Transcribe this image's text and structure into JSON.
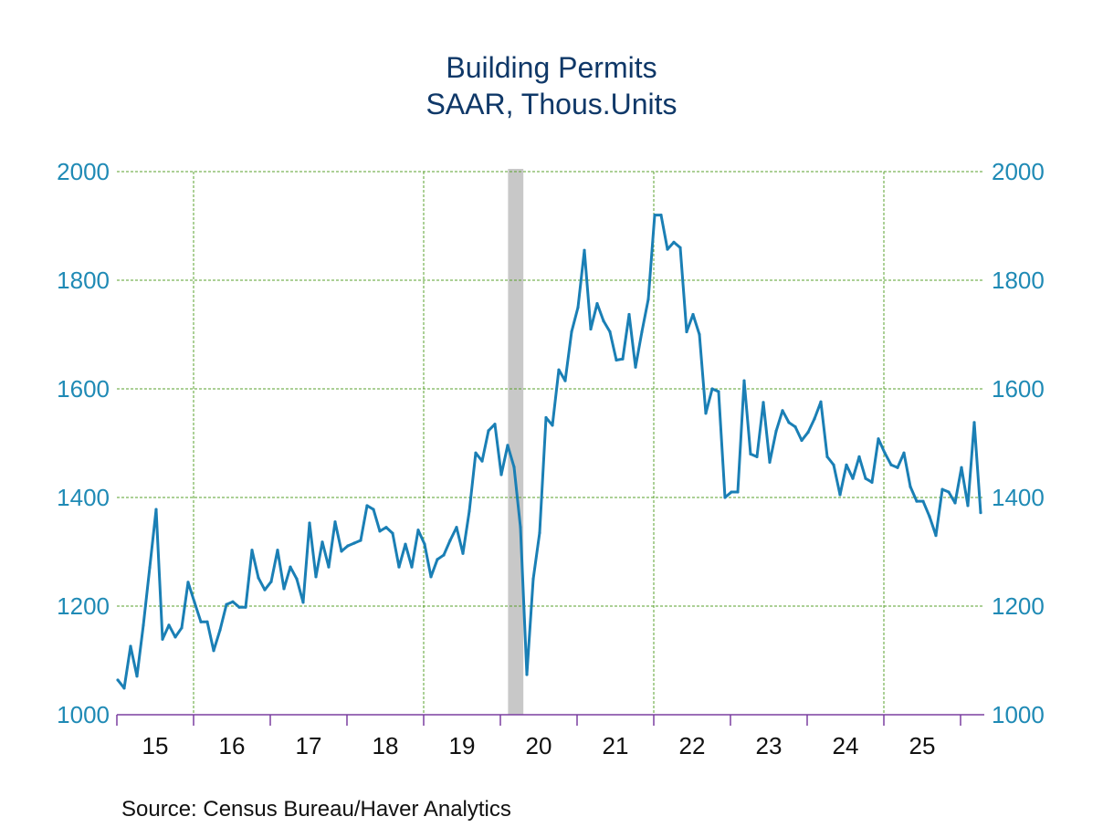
{
  "chart_data": {
    "type": "line",
    "title": "Building Permits",
    "subtitle": "SAAR, Thous.Units",
    "source": "Source:  Census Bureau/Haver Analytics",
    "xlabel": "",
    "ylabel": "",
    "ylim": [
      1000,
      2000
    ],
    "yticks": [
      1000,
      1200,
      1400,
      1600,
      1800,
      2000
    ],
    "ytick_labels": [
      "1000",
      "1200",
      "1400",
      "1600",
      "1800",
      "2000"
    ],
    "y_axis_sides": [
      "left",
      "right"
    ],
    "xlim_years": [
      2015,
      2026.25
    ],
    "xtick_labels": [
      "15",
      "16",
      "17",
      "18",
      "19",
      "20",
      "21",
      "22",
      "23",
      "24",
      "25"
    ],
    "grid": true,
    "vertical_grid_years": [
      2016,
      2019,
      2022,
      2025
    ],
    "recession_shading": [
      {
        "start": 2020.1,
        "end": 2020.3
      }
    ],
    "colors": {
      "line": "#1a7fb5",
      "grid": "#5aa02c",
      "axis": "#7b3fa0",
      "recession": "#c8c8c8",
      "title": "#0f3868",
      "ytick": "#1f8ab5"
    },
    "series": [
      {
        "name": "Building Permits",
        "start": "2015-01",
        "frequency": "monthly",
        "values": [
          1064,
          1049,
          1126,
          1071,
          1165,
          1271,
          1378,
          1139,
          1165,
          1143,
          1160,
          1244,
          1207,
          1171,
          1171,
          1118,
          1156,
          1203,
          1208,
          1198,
          1198,
          1303,
          1252,
          1230,
          1245,
          1303,
          1232,
          1272,
          1250,
          1207,
          1353,
          1254,
          1318,
          1272,
          1355,
          1301,
          1311,
          1316,
          1321,
          1385,
          1378,
          1338,
          1345,
          1334,
          1272,
          1314,
          1272,
          1340,
          1314,
          1254,
          1286,
          1294,
          1321,
          1345,
          1297,
          1375,
          1482,
          1467,
          1523,
          1535,
          1442,
          1496,
          1456,
          1345,
          1074,
          1250,
          1335,
          1547,
          1533,
          1635,
          1615,
          1705,
          1750,
          1855,
          1710,
          1757,
          1725,
          1705,
          1653,
          1655,
          1737,
          1640,
          1705,
          1765,
          1920,
          1920,
          1857,
          1870,
          1860,
          1705,
          1737,
          1700,
          1555,
          1600,
          1595,
          1400,
          1410,
          1410,
          1615,
          1480,
          1475,
          1575,
          1465,
          1522,
          1560,
          1538,
          1530,
          1505,
          1520,
          1545,
          1576,
          1475,
          1460,
          1405,
          1460,
          1435,
          1475,
          1435,
          1428,
          1508,
          1482,
          1460,
          1455,
          1482,
          1420,
          1393,
          1393,
          1365,
          1330,
          1415,
          1410,
          1390,
          1455,
          1385,
          1538,
          1372
        ]
      }
    ]
  }
}
